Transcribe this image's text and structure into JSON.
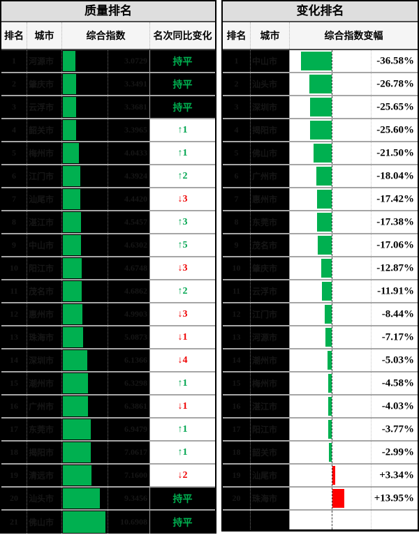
{
  "styles": {
    "quality_bar_color": "#00b050",
    "neg_change_bar_color": "#00b050",
    "pos_change_bar_color": "#ff0000",
    "up_text_color": "#00a550",
    "down_text_color": "#ee0000",
    "flat_text_color": "#00b050",
    "redacted_cell_bg": "#000000",
    "redacted_text_color": "#161616",
    "title_bg": "#dedede"
  },
  "left_table": {
    "title": "质量排名",
    "headers": {
      "rank": "排名",
      "city": "城市",
      "index": "综合指数",
      "change": "名次同比变化"
    },
    "rows": [
      {
        "rank": "1",
        "city": "河源市",
        "index": 3.0729,
        "index_label": "3.0729",
        "change_label": "持平",
        "change_dir": "flat"
      },
      {
        "rank": "2",
        "city": "肇庆市",
        "index": 3.3491,
        "index_label": "3.3491",
        "change_label": "持平",
        "change_dir": "flat"
      },
      {
        "rank": "3",
        "city": "云浮市",
        "index": 3.3681,
        "index_label": "3.3681",
        "change_label": "持平",
        "change_dir": "flat"
      },
      {
        "rank": "4",
        "city": "韶关市",
        "index": 3.3965,
        "index_label": "3.3965",
        "change_label": "↑1",
        "change_dir": "up"
      },
      {
        "rank": "5",
        "city": "梅州市",
        "index": 4.0433,
        "index_label": "4.0433",
        "change_label": "↑1",
        "change_dir": "up"
      },
      {
        "rank": "6",
        "city": "江门市",
        "index": 4.3924,
        "index_label": "4.3924",
        "change_label": "↑2",
        "change_dir": "up"
      },
      {
        "rank": "7",
        "city": "汕尾市",
        "index": 4.442,
        "index_label": "4.4420",
        "change_label": "↓3",
        "change_dir": "down"
      },
      {
        "rank": "8",
        "city": "湛江市",
        "index": 4.5457,
        "index_label": "4.5457",
        "change_label": "↑3",
        "change_dir": "up"
      },
      {
        "rank": "9",
        "city": "中山市",
        "index": 4.6302,
        "index_label": "4.6302",
        "change_label": "↑5",
        "change_dir": "up"
      },
      {
        "rank": "10",
        "city": "阳江市",
        "index": 4.6748,
        "index_label": "4.6748",
        "change_label": "↓3",
        "change_dir": "down"
      },
      {
        "rank": "11",
        "city": "茂名市",
        "index": 4.6862,
        "index_label": "4.6862",
        "change_label": "↑2",
        "change_dir": "up"
      },
      {
        "rank": "12",
        "city": "惠州市",
        "index": 4.9903,
        "index_label": "4.9903",
        "change_label": "↓3",
        "change_dir": "down"
      },
      {
        "rank": "13",
        "city": "珠海市",
        "index": 5.0873,
        "index_label": "5.0873",
        "change_label": "↓1",
        "change_dir": "down"
      },
      {
        "rank": "14",
        "city": "深圳市",
        "index": 6.1366,
        "index_label": "6.1366",
        "change_label": "↓4",
        "change_dir": "down"
      },
      {
        "rank": "15",
        "city": "潮州市",
        "index": 6.3298,
        "index_label": "6.3298",
        "change_label": "↑1",
        "change_dir": "up"
      },
      {
        "rank": "16",
        "city": "广州市",
        "index": 6.3861,
        "index_label": "6.3861",
        "change_label": "↓1",
        "change_dir": "down"
      },
      {
        "rank": "17",
        "city": "东莞市",
        "index": 6.9479,
        "index_label": "6.9479",
        "change_label": "↑1",
        "change_dir": "up"
      },
      {
        "rank": "18",
        "city": "揭阳市",
        "index": 7.0617,
        "index_label": "7.0617",
        "change_label": "↑1",
        "change_dir": "up"
      },
      {
        "rank": "19",
        "city": "清远市",
        "index": 7.16,
        "index_label": "7.1600",
        "change_label": "↓2",
        "change_dir": "down"
      },
      {
        "rank": "20",
        "city": "汕头市",
        "index": 9.3456,
        "index_label": "9.3456",
        "change_label": "持平",
        "change_dir": "flat"
      },
      {
        "rank": "21",
        "city": "佛山市",
        "index": 10.6908,
        "index_label": "10.6908",
        "change_label": "持平",
        "change_dir": "flat"
      }
    ]
  },
  "right_table": {
    "title": "变化排名",
    "headers": {
      "rank": "排名",
      "city": "城市",
      "delta": "综合指数变幅"
    },
    "rows": [
      {
        "rank": "1",
        "city": "中山市",
        "pct": -36.58,
        "label": "-36.58%"
      },
      {
        "rank": "2",
        "city": "汕头市",
        "pct": -26.78,
        "label": "-26.78%"
      },
      {
        "rank": "3",
        "city": "深圳市",
        "pct": -25.65,
        "label": "-25.65%"
      },
      {
        "rank": "4",
        "city": "揭阳市",
        "pct": -25.6,
        "label": "-25.60%"
      },
      {
        "rank": "5",
        "city": "佛山市",
        "pct": -21.5,
        "label": "-21.50%"
      },
      {
        "rank": "6",
        "city": "广州市",
        "pct": -18.04,
        "label": "-18.04%"
      },
      {
        "rank": "7",
        "city": "惠州市",
        "pct": -17.42,
        "label": "-17.42%"
      },
      {
        "rank": "8",
        "city": "东莞市",
        "pct": -17.38,
        "label": "-17.38%"
      },
      {
        "rank": "9",
        "city": "茂名市",
        "pct": -17.06,
        "label": "-17.06%"
      },
      {
        "rank": "10",
        "city": "肇庆市",
        "pct": -12.87,
        "label": "-12.87%"
      },
      {
        "rank": "11",
        "city": "云浮市",
        "pct": -11.91,
        "label": "-11.91%"
      },
      {
        "rank": "12",
        "city": "江门市",
        "pct": -8.44,
        "label": "-8.44%"
      },
      {
        "rank": "13",
        "city": "河源市",
        "pct": -7.17,
        "label": "-7.17%"
      },
      {
        "rank": "14",
        "city": "潮州市",
        "pct": -5.03,
        "label": "-5.03%"
      },
      {
        "rank": "15",
        "city": "梅州市",
        "pct": -4.58,
        "label": "-4.58%"
      },
      {
        "rank": "16",
        "city": "湛江市",
        "pct": -4.03,
        "label": "-4.03%"
      },
      {
        "rank": "17",
        "city": "阳江市",
        "pct": -3.77,
        "label": "-3.77%"
      },
      {
        "rank": "18",
        "city": "韶关市",
        "pct": -2.99,
        "label": "-2.99%"
      },
      {
        "rank": "19",
        "city": "汕尾市",
        "pct": 3.34,
        "label": "+3.34%"
      },
      {
        "rank": "20",
        "city": "珠海市",
        "pct": 13.95,
        "label": "+13.95%"
      },
      {
        "rank": "",
        "city": "",
        "pct": null,
        "label": ""
      }
    ]
  },
  "chart_data": [
    {
      "type": "bar",
      "title": "质量排名",
      "orientation": "horizontal",
      "categories": [
        "1",
        "2",
        "3",
        "4",
        "5",
        "6",
        "7",
        "8",
        "9",
        "10",
        "11",
        "12",
        "13",
        "14",
        "15",
        "16",
        "17",
        "18",
        "19",
        "20",
        "21"
      ],
      "values": [
        3.0729,
        3.3491,
        3.3681,
        3.3965,
        4.0433,
        4.3924,
        4.442,
        4.5457,
        4.6302,
        4.6748,
        4.6862,
        4.9903,
        5.0873,
        6.1366,
        6.3298,
        6.3861,
        6.9479,
        7.0617,
        7.16,
        9.3456,
        10.6908
      ],
      "rank_change_labels": [
        "持平",
        "持平",
        "持平",
        "↑1",
        "↑1",
        "↑2",
        "↓3",
        "↑3",
        "↑5",
        "↓3",
        "↑2",
        "↓3",
        "↓1",
        "↓4",
        "↑1",
        "↓1",
        "↑1",
        "↑1",
        "↓2",
        "持平",
        "持平"
      ],
      "xlabel": "综合指数",
      "bar_color": "#00b050",
      "grid": false
    },
    {
      "type": "bar",
      "title": "变化排名",
      "orientation": "horizontal",
      "categories": [
        "1",
        "2",
        "3",
        "4",
        "5",
        "6",
        "7",
        "8",
        "9",
        "10",
        "11",
        "12",
        "13",
        "14",
        "15",
        "16",
        "17",
        "18",
        "19",
        "20"
      ],
      "values": [
        -36.58,
        -26.78,
        -25.65,
        -25.6,
        -21.5,
        -18.04,
        -17.42,
        -17.38,
        -17.06,
        -12.87,
        -11.91,
        -8.44,
        -7.17,
        -5.03,
        -4.58,
        -4.03,
        -3.77,
        -2.99,
        3.34,
        13.95
      ],
      "unit": "%",
      "xlabel": "综合指数变幅",
      "neg_color": "#00b050",
      "pos_color": "#ff0000",
      "baseline": 0,
      "grid": false
    }
  ]
}
